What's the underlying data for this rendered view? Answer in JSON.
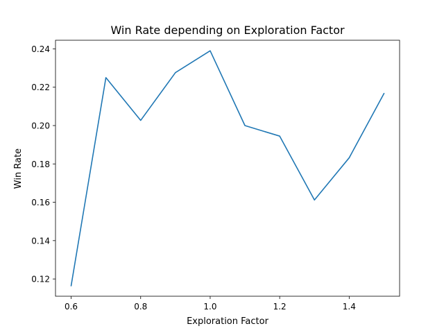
{
  "chart_data": {
    "type": "line",
    "title": "Win Rate depending on Exploration Factor",
    "xlabel": "Exploration Factor",
    "ylabel": "Win Rate",
    "xlim": [
      0.555,
      1.545
    ],
    "ylim": [
      0.111,
      0.2445
    ],
    "grid": false,
    "x_ticks": [
      "0.6",
      "0.8",
      "1.0",
      "1.2",
      "1.4"
    ],
    "y_ticks": [
      "0.12",
      "0.14",
      "0.16",
      "0.18",
      "0.20",
      "0.22",
      "0.24"
    ],
    "series": [
      {
        "color": "#1f77b4",
        "x": [
          0.6,
          0.7,
          0.8,
          0.9,
          1.0,
          1.1,
          1.2,
          1.3,
          1.4,
          1.5
        ],
        "y": [
          0.1165,
          0.225,
          0.2027,
          0.2276,
          0.239,
          0.2,
          0.1945,
          0.1612,
          0.1832,
          0.2167
        ]
      }
    ]
  }
}
